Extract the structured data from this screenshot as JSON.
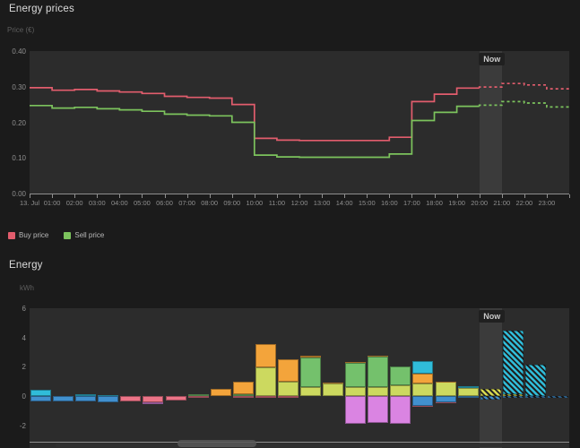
{
  "ui": {
    "background": "#1b1b1b",
    "plot_background": "#2c2c2c",
    "now_band_color": "rgba(255,255,255,0.075)",
    "now_label": "Now"
  },
  "chart_data": [
    {
      "type": "line",
      "title": "Energy prices",
      "ylabel": "Price (€)",
      "xlabel": "",
      "ylim": [
        0,
        0.4
      ],
      "y_ticks": [
        0.4,
        0.3,
        0.2,
        0.1,
        0.0
      ],
      "x": [
        "13. Jul",
        "01:00",
        "02:00",
        "03:00",
        "04:00",
        "05:00",
        "06:00",
        "07:00",
        "08:00",
        "09:00",
        "10:00",
        "11:00",
        "12:00",
        "13:00",
        "14:00",
        "15:00",
        "16:00",
        "17:00",
        "18:00",
        "19:00",
        "20:00",
        "21:00",
        "22:00",
        "23:00"
      ],
      "step": true,
      "grid": false,
      "legend_position": "bottom-left",
      "now_band": {
        "label": "Now",
        "start_hour": 20,
        "end_hour": 21
      },
      "forecast_dashed_from_hour": 20,
      "series": [
        {
          "name": "Buy price",
          "color": "#e25d6d",
          "values": [
            0.297,
            0.29,
            0.292,
            0.288,
            0.285,
            0.281,
            0.273,
            0.27,
            0.268,
            0.25,
            0.155,
            0.15,
            0.149,
            0.149,
            0.149,
            0.149,
            0.158,
            0.258,
            0.279,
            0.296,
            0.299,
            0.309,
            0.305,
            0.294
          ]
        },
        {
          "name": "Sell price",
          "color": "#7cc35d",
          "values": [
            0.247,
            0.24,
            0.242,
            0.238,
            0.235,
            0.231,
            0.223,
            0.22,
            0.218,
            0.2,
            0.108,
            0.103,
            0.102,
            0.102,
            0.102,
            0.102,
            0.111,
            0.205,
            0.228,
            0.245,
            0.248,
            0.258,
            0.254,
            0.243
          ]
        }
      ]
    },
    {
      "type": "bar",
      "title": "Energy",
      "ylabel": "kWh",
      "xlabel": "",
      "ylim": [
        -3.1,
        6
      ],
      "y_ticks": [
        6,
        4,
        2,
        0,
        -2
      ],
      "stacked": true,
      "grid": false,
      "now_band": {
        "label": "Now",
        "start_hour": 20,
        "end_hour": 21
      },
      "colors": {
        "cyan": "#30bcd9",
        "blue": "#4190ce",
        "pink": "#ec7487",
        "magenta": "#da84e2",
        "orange": "#f3a43b",
        "lime": "#ccd95f",
        "green": "#74c16c",
        "yellow": "#d6d84f"
      },
      "bars": [
        {
          "pos": [
            [
              "cyan",
              0.45
            ]
          ],
          "neg": [
            [
              "blue",
              0.35
            ]
          ]
        },
        {
          "pos": [],
          "neg": [
            [
              "blue",
              0.35
            ]
          ]
        },
        {
          "pos": [
            [
              "cyan",
              0.12
            ]
          ],
          "neg": [
            [
              "blue",
              0.35
            ]
          ]
        },
        {
          "pos": [
            [
              "cyan",
              0.05
            ]
          ],
          "neg": [
            [
              "blue",
              0.45
            ]
          ]
        },
        {
          "pos": [],
          "neg": [
            [
              "pink",
              0.34
            ]
          ]
        },
        {
          "pos": [],
          "neg": [
            [
              "pink",
              0.45
            ],
            [
              "magenta",
              0.1
            ]
          ]
        },
        {
          "pos": [],
          "neg": [
            [
              "pink",
              0.3
            ]
          ]
        },
        {
          "pos": [
            [
              "green",
              0.12
            ]
          ],
          "neg": [
            [
              "pink",
              0.15
            ]
          ]
        },
        {
          "pos": [
            [
              "orange",
              0.47
            ]
          ],
          "neg": []
        },
        {
          "pos": [
            [
              "green",
              0.1
            ],
            [
              "orange",
              0.9
            ]
          ],
          "neg": [
            [
              "pink",
              0.1
            ]
          ]
        },
        {
          "pos": [
            [
              "lime",
              1.95
            ],
            [
              "orange",
              1.6
            ]
          ],
          "neg": [
            [
              "pink",
              0.15
            ]
          ]
        },
        {
          "pos": [
            [
              "lime",
              0.95
            ],
            [
              "orange",
              1.58
            ]
          ],
          "neg": [
            [
              "pink",
              0.15
            ]
          ]
        },
        {
          "pos": [
            [
              "lime",
              0.6
            ],
            [
              "green",
              2.05
            ],
            [
              "orange",
              0.1
            ]
          ],
          "neg": []
        },
        {
          "pos": [
            [
              "lime",
              0.85
            ],
            [
              "orange",
              0.07
            ]
          ],
          "neg": []
        },
        {
          "pos": [
            [
              "lime",
              0.6
            ],
            [
              "green",
              1.65
            ],
            [
              "orange",
              0.07
            ]
          ],
          "neg": [
            [
              "magenta",
              1.92
            ]
          ]
        },
        {
          "pos": [
            [
              "lime",
              0.6
            ],
            [
              "green",
              2.1
            ],
            [
              "orange",
              0.06
            ]
          ],
          "neg": [
            [
              "magenta",
              1.82
            ]
          ]
        },
        {
          "pos": [
            [
              "lime",
              0.75
            ],
            [
              "green",
              1.27
            ]
          ],
          "neg": [
            [
              "magenta",
              1.92
            ]
          ]
        },
        {
          "pos": [
            [
              "lime",
              0.87
            ],
            [
              "orange",
              0.64
            ],
            [
              "cyan",
              0.85
            ]
          ],
          "neg": [
            [
              "blue",
              0.65
            ],
            [
              "pink",
              0.08
            ]
          ]
        },
        {
          "pos": [
            [
              "lime",
              0.95
            ],
            [
              "orange",
              0.06
            ]
          ],
          "neg": [
            [
              "blue",
              0.4
            ],
            [
              "pink",
              0.06
            ]
          ]
        },
        {
          "pos": [
            [
              "lime",
              0.55
            ],
            [
              "cyan",
              0.1
            ]
          ],
          "neg": [
            [
              "blue",
              0.14
            ]
          ]
        },
        {
          "pos": [
            [
              "yellow",
              0.46
            ]
          ],
          "neg": [
            [
              "blue",
              0.24
            ]
          ],
          "forecast": true
        },
        {
          "pos": [
            [
              "yellow",
              0.1
            ],
            [
              "cyan",
              4.35
            ]
          ],
          "neg": [
            [
              "blue",
              0.14
            ]
          ],
          "forecast": true
        },
        {
          "pos": [
            [
              "cyan",
              2.12
            ]
          ],
          "neg": [
            [
              "blue",
              0.14
            ]
          ],
          "forecast": true
        },
        {
          "pos": [],
          "neg": [
            [
              "blue",
              0.14
            ]
          ],
          "forecast": true
        }
      ]
    }
  ]
}
